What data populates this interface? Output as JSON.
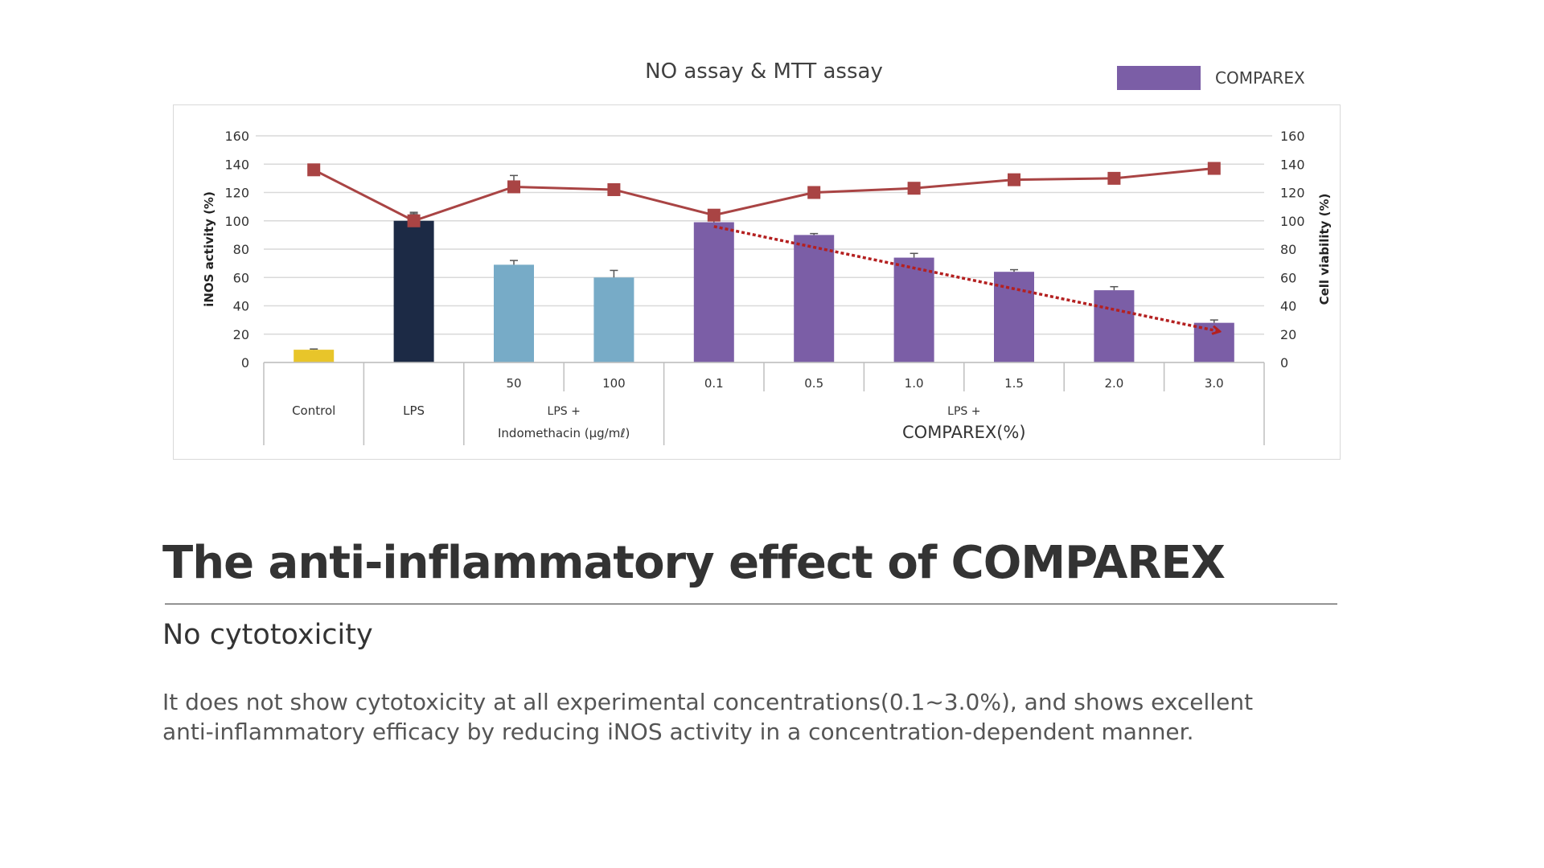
{
  "chart_data": {
    "type": "bar+line",
    "title": "NO assay & MTT assay",
    "legend": {
      "entries": [
        "COMPAREX"
      ],
      "placement": "top-right"
    },
    "y_left": {
      "label": "iNOS activity (%)",
      "range": [
        0,
        160
      ],
      "ticks": [
        0,
        20,
        40,
        60,
        80,
        100,
        120,
        140,
        160
      ]
    },
    "y_right": {
      "label": "Cell viability (%)",
      "range": [
        0,
        160
      ],
      "ticks": [
        0,
        20,
        40,
        60,
        80,
        100,
        120,
        140,
        160
      ]
    },
    "sub_labels": [
      "",
      "",
      "50",
      "100",
      "0.1",
      "0.5",
      "1.0",
      "1.5",
      "2.0",
      "3.0"
    ],
    "groups": [
      {
        "label": "Control",
        "lines": [
          "Control"
        ],
        "span": [
          0,
          0
        ]
      },
      {
        "label": "LPS",
        "lines": [
          "LPS"
        ],
        "span": [
          1,
          1
        ]
      },
      {
        "label": "LPS + Indomethacin (μg/mℓ)",
        "lines": [
          "LPS +",
          "Indomethacin (μg/mℓ)"
        ],
        "span": [
          2,
          3
        ]
      },
      {
        "label": "LPS + COMPAREX(%)",
        "lines": [
          "LPS +",
          "COMPAREX(%)"
        ],
        "span": [
          4,
          9
        ]
      }
    ],
    "bars": {
      "name": "iNOS activity",
      "values": [
        9,
        100,
        69,
        60,
        99,
        90,
        74,
        64,
        51,
        28
      ],
      "errors": [
        0.5,
        6,
        3,
        5,
        1,
        1,
        3,
        1.5,
        2.5,
        2
      ],
      "colors": [
        "#e8c52a",
        "#1c2a45",
        "#77abc7",
        "#77abc7",
        "#7b5ea6",
        "#7b5ea6",
        "#7b5ea6",
        "#7b5ea6",
        "#7b5ea6",
        "#7b5ea6"
      ]
    },
    "line": {
      "name": "Cell viability",
      "values": [
        136,
        100,
        124,
        122,
        104,
        120,
        123,
        129,
        130,
        137
      ],
      "errors": [
        0,
        5,
        8,
        0,
        3,
        0,
        0,
        0,
        0,
        0
      ],
      "color": "#a94444"
    },
    "trend_arrow": {
      "from_index": 4,
      "from_value": 96,
      "to_index": 9,
      "to_value": 22,
      "color": "#b42020"
    },
    "grid": true
  },
  "colors": {
    "legend_swatch": "#7b5ea6",
    "grid": "#d9d9d9",
    "axis_text": "#333333"
  },
  "text": {
    "headline": "The anti-inflammatory effect of COMPAREX",
    "subhead": "No cytotoxicity",
    "body_line1": "It does not show cytotoxicity at all experimental concentrations(0.1~3.0%), and shows excellent",
    "body_line2": "anti-inflammatory efficacy by reducing iNOS activity in a concentration-dependent manner."
  }
}
